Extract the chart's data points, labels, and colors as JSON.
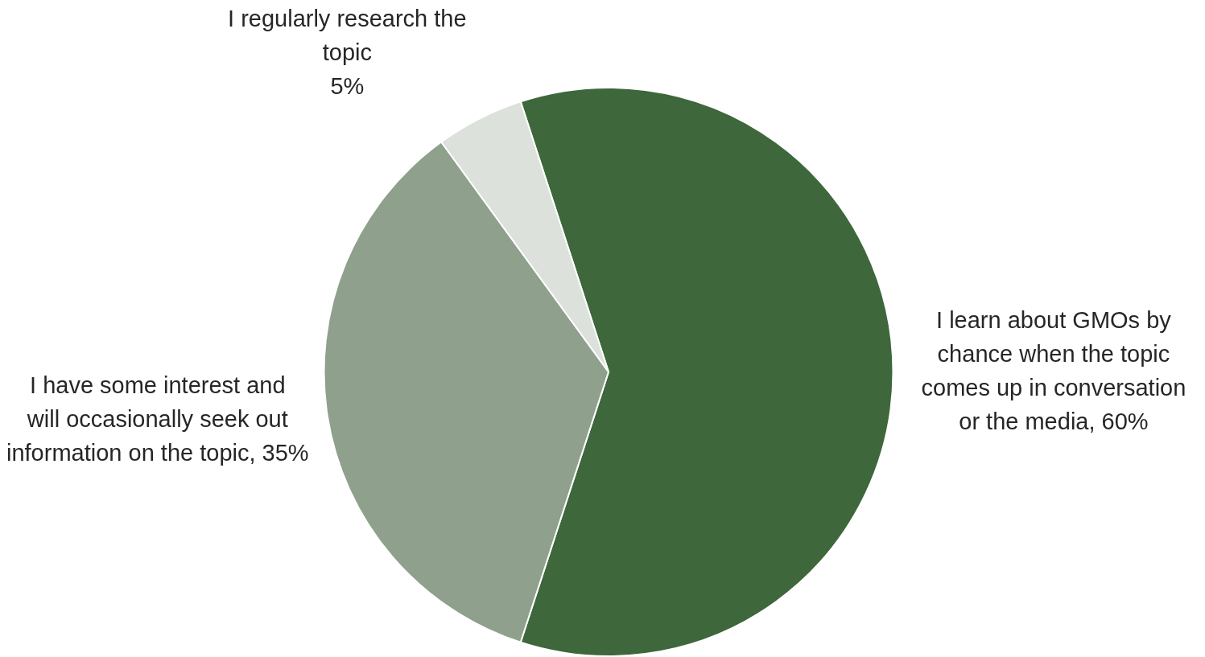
{
  "chart_data": {
    "type": "pie",
    "categories": [
      "I learn about GMOs by chance when the topic comes up in conversation or the media",
      "I have some interest and will occasionally seek out information on the topic",
      "I regularly research the topic"
    ],
    "value_labels": [
      "60%",
      "35%",
      "5%"
    ],
    "values": [
      60,
      35,
      5
    ],
    "colors": [
      "#3e673c",
      "#8fa08d",
      "#dce1dc"
    ]
  }
}
